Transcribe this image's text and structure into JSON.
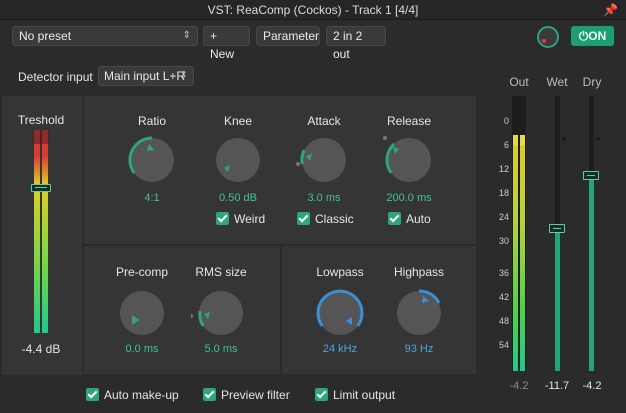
{
  "window": {
    "title": "VST: ReaComp (Cockos) - Track 1 [4/4]"
  },
  "toolbar": {
    "preset": "No preset",
    "new_label": "+ New",
    "param_label": "Parameter",
    "io_label": "2 in 2 out",
    "on_label": "⏻ON"
  },
  "detector": {
    "label": "Detector input",
    "value": "Main input L+R"
  },
  "threshold": {
    "label": "Treshold",
    "value": "-4.4 dB"
  },
  "knobs": {
    "ratio": {
      "label": "Ratio",
      "value": "4:1"
    },
    "knee": {
      "label": "Knee",
      "value": "0.50 dB"
    },
    "attack": {
      "label": "Attack",
      "value": "3.0 ms"
    },
    "release": {
      "label": "Release",
      "value": "200.0 ms"
    },
    "precomp": {
      "label": "Pre-comp",
      "value": "0.0 ms"
    },
    "rms": {
      "label": "RMS size",
      "value": "5.0 ms"
    },
    "lowpass": {
      "label": "Lowpass",
      "value": "24 kHz"
    },
    "highpass": {
      "label": "Highpass",
      "value": "93 Hz"
    }
  },
  "checks": {
    "weird": "Weird",
    "classic": "Classic",
    "auto": "Auto",
    "auto_makeup": "Auto make-up",
    "preview": "Preview filter",
    "limit": "Limit output"
  },
  "meters": {
    "out_label": "Out",
    "wet_label": "Wet",
    "dry_label": "Dry",
    "out_value": "-4.2",
    "wet_value": "-11.7",
    "dry_value": "-4.2",
    "scale": [
      "0",
      "6",
      "12",
      "18",
      "24",
      "30",
      "36",
      "42",
      "48",
      "54"
    ]
  },
  "colors": {
    "accent_green": "#2ea57a",
    "accent_blue": "#3b8fd6"
  }
}
